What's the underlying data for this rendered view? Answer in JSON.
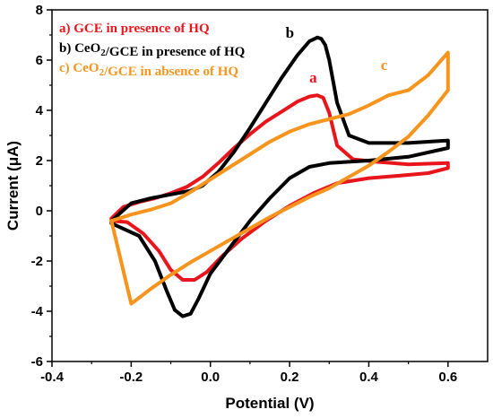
{
  "chart_data": {
    "type": "line",
    "xlabel": "Potential (V)",
    "ylabel": "Current (μA)",
    "xlim": [
      -0.4,
      0.7
    ],
    "ylim": [
      -6,
      8
    ],
    "xticks": [
      -0.4,
      -0.2,
      0.0,
      0.2,
      0.4,
      0.6
    ],
    "xtick_labels": [
      "-0.4",
      "-0.2",
      "0.0",
      "0.2",
      "0.4",
      "0.6"
    ],
    "yticks": [
      -6,
      -4,
      -2,
      0,
      2,
      4,
      6,
      8
    ],
    "ytick_labels": [
      "-6",
      "-4",
      "-2",
      "0",
      "2",
      "4",
      "6",
      "8"
    ],
    "grid": false,
    "legend_position": "top-left",
    "series": [
      {
        "name": "a) GCE in presence of HQ",
        "label": "a",
        "color": "#e8161c",
        "x": [
          -0.25,
          -0.22,
          -0.18,
          -0.14,
          -0.1,
          -0.06,
          -0.02,
          0.02,
          0.06,
          0.1,
          0.14,
          0.18,
          0.22,
          0.25,
          0.27,
          0.285,
          0.3,
          0.32,
          0.36,
          0.42,
          0.5,
          0.6,
          0.6,
          0.55,
          0.48,
          0.4,
          0.32,
          0.26,
          0.2,
          0.14,
          0.08,
          0.03,
          -0.01,
          -0.04,
          -0.07,
          -0.1,
          -0.13,
          -0.17,
          -0.21,
          -0.25
        ],
        "y": [
          -0.3,
          0.15,
          0.35,
          0.5,
          0.7,
          0.95,
          1.35,
          1.9,
          2.5,
          3.05,
          3.55,
          3.95,
          4.35,
          4.55,
          4.6,
          4.5,
          3.9,
          2.6,
          2.05,
          1.95,
          1.85,
          1.9,
          1.7,
          1.5,
          1.4,
          1.3,
          1.1,
          0.7,
          0.2,
          -0.4,
          -1.1,
          -1.8,
          -2.45,
          -2.75,
          -2.75,
          -2.35,
          -1.6,
          -0.9,
          -0.45,
          -0.4
        ]
      },
      {
        "name": "b) CeO2/GCE in presence of HQ",
        "label": "b",
        "color": "#000000",
        "x": [
          -0.25,
          -0.2,
          -0.15,
          -0.1,
          -0.05,
          -0.02,
          0.02,
          0.06,
          0.1,
          0.14,
          0.18,
          0.22,
          0.25,
          0.27,
          0.28,
          0.29,
          0.3,
          0.32,
          0.35,
          0.4,
          0.5,
          0.6,
          0.6,
          0.5,
          0.4,
          0.3,
          0.25,
          0.2,
          0.15,
          0.1,
          0.05,
          0.0,
          -0.03,
          -0.05,
          -0.07,
          -0.09,
          -0.11,
          -0.14,
          -0.18,
          -0.25
        ],
        "y": [
          -0.4,
          0.3,
          0.5,
          0.65,
          0.8,
          1.0,
          1.55,
          2.35,
          3.3,
          4.3,
          5.3,
          6.2,
          6.75,
          6.9,
          6.85,
          6.6,
          6.0,
          4.3,
          3.0,
          2.7,
          2.7,
          2.8,
          2.5,
          2.15,
          2.0,
          1.9,
          1.75,
          1.3,
          0.5,
          -0.4,
          -1.45,
          -2.5,
          -3.5,
          -4.1,
          -4.2,
          -3.95,
          -3.2,
          -2.0,
          -1.0,
          -0.5
        ]
      },
      {
        "name": "c) CeO2/GCE in absence of HQ",
        "label": "c",
        "color": "#f7941d",
        "x": [
          -0.25,
          -0.2,
          -0.15,
          -0.1,
          -0.05,
          0.0,
          0.05,
          0.1,
          0.15,
          0.2,
          0.25,
          0.3,
          0.35,
          0.4,
          0.45,
          0.5,
          0.55,
          0.6,
          0.6,
          0.55,
          0.5,
          0.45,
          0.4,
          0.35,
          0.3,
          0.25,
          0.2,
          0.15,
          0.1,
          0.05,
          0.0,
          -0.05,
          -0.1,
          -0.15,
          -0.2
        ],
        "y": [
          -0.4,
          -0.15,
          0.05,
          0.3,
          0.75,
          1.25,
          1.75,
          2.25,
          2.75,
          3.15,
          3.45,
          3.65,
          3.85,
          4.2,
          4.6,
          4.8,
          5.4,
          6.3,
          4.8,
          3.8,
          2.95,
          2.35,
          1.8,
          1.35,
          0.9,
          0.55,
          0.15,
          -0.25,
          -0.7,
          -1.15,
          -1.6,
          -2.05,
          -2.55,
          -3.1,
          -3.7
        ]
      }
    ],
    "curve_label_positions": [
      {
        "label": "a",
        "x": 0.25,
        "y": 5.1
      },
      {
        "label": "b",
        "x": 0.19,
        "y": 6.9
      },
      {
        "label": "c",
        "x": 0.43,
        "y": 5.6
      }
    ]
  }
}
